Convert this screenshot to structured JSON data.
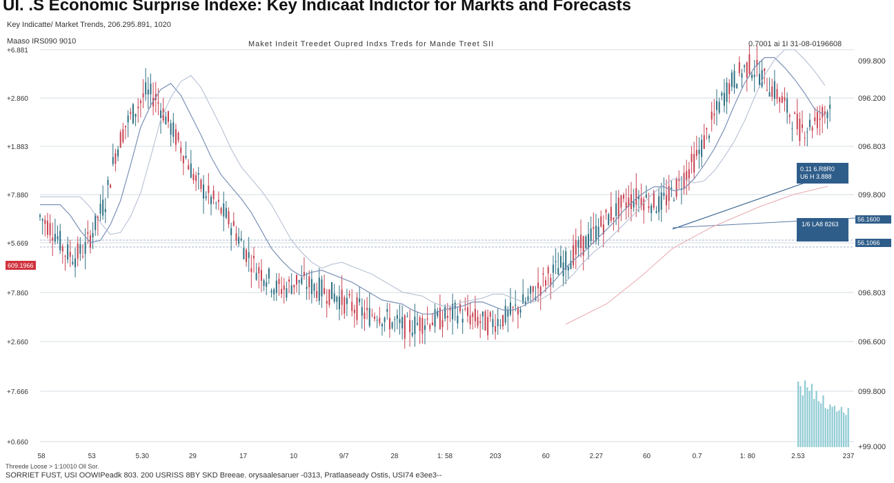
{
  "title": "UI. .S Economic Surprise Indexe: Key Indicaat Indictor for Markts and Forecasts",
  "subtitle": "Key Indicatte/  Market  Trends,  206.295.891,  1020",
  "top_left_label": "Maaso IRS090 9010",
  "header_center": "Maket  Indeit  Treedet  Oupred  Indxs  Treds  for  Mande  Treet  SII",
  "header_right": "0.7001 ai 1I 31-08-0196608",
  "footer_line1": "Threede Loose > 1:10010 Oll Sor.",
  "footer_line2": "SORRIET FUST, USI OOWIPeadk 803. 200 USRISS 8BY SKD Breeae.  orysaalesaruer -0313, Pratlaaseady Ostis, USI74 e3ee3--",
  "colors": {
    "bull": "#2b6f82",
    "bear": "#c84150",
    "grid": "#d5dce3",
    "ma_line": "#7a8fb5",
    "annotation_box": "#2f5d8a",
    "red_tag": "#d0323e",
    "volume": "#8ecad3"
  },
  "left_axis_labels": [
    "+6.881",
    "+2.860",
    "+1.883",
    "+7.880",
    "+5.669",
    "+7.860",
    "+2.660",
    "+7.666",
    "+0.660"
  ],
  "right_axis_labels": [
    "099.800",
    "096.200",
    "096.803",
    "099.800",
    "096.803",
    "096.600",
    "099.800",
    "+99.000"
  ],
  "x_axis_labels": [
    "58",
    "53",
    "5.30",
    "29",
    "17",
    "10",
    "9/7",
    "28",
    "1: 58",
    "203",
    "60",
    "2.27",
    "60",
    "0.7",
    "1: 80",
    "2.53",
    "237"
  ],
  "left_tag": "609.1966",
  "right_tags": [
    "56.1600",
    "56.1066"
  ],
  "annotations": [
    {
      "line1": "0.11 6.R8R0",
      "line2": "U6 H 3.888"
    },
    {
      "line1": "1/6 LA8 8263",
      "line2": ""
    }
  ],
  "chart_data": {
    "type": "candlestick",
    "title": "UI. .S Economic Surprise Indexe: Key Indicaat Indictor for Markts and Forecasts",
    "ylim": [
      0,
      100
    ],
    "close_path": [
      [
        0,
        58
      ],
      [
        3,
        54
      ],
      [
        5,
        49
      ],
      [
        7,
        48
      ],
      [
        9,
        50
      ],
      [
        11,
        56
      ],
      [
        13,
        62
      ],
      [
        15,
        74
      ],
      [
        17,
        81
      ],
      [
        19,
        85
      ],
      [
        21,
        89
      ],
      [
        23,
        88
      ],
      [
        25,
        83
      ],
      [
        27,
        78
      ],
      [
        29,
        73
      ],
      [
        31,
        67
      ],
      [
        33,
        64
      ],
      [
        35,
        61
      ],
      [
        37,
        58
      ],
      [
        39,
        54
      ],
      [
        41,
        49
      ],
      [
        43,
        45
      ],
      [
        45,
        43
      ],
      [
        47,
        40
      ],
      [
        49,
        40
      ],
      [
        51,
        42
      ],
      [
        53,
        41
      ],
      [
        55,
        40
      ],
      [
        57,
        39
      ],
      [
        59,
        38
      ],
      [
        61,
        36
      ],
      [
        63,
        35
      ],
      [
        65,
        33
      ],
      [
        67,
        34
      ],
      [
        69,
        32
      ],
      [
        71,
        31
      ],
      [
        73,
        30
      ],
      [
        75,
        31
      ],
      [
        77,
        32
      ],
      [
        79,
        32
      ],
      [
        81,
        33
      ],
      [
        83,
        34
      ],
      [
        85,
        33
      ],
      [
        87,
        32
      ],
      [
        89,
        31
      ],
      [
        91,
        32
      ],
      [
        93,
        33
      ],
      [
        95,
        35
      ],
      [
        97,
        37
      ],
      [
        99,
        40
      ],
      [
        101,
        43
      ],
      [
        103,
        45
      ],
      [
        105,
        47
      ],
      [
        107,
        50
      ],
      [
        109,
        52
      ],
      [
        111,
        55
      ],
      [
        113,
        58
      ],
      [
        115,
        60
      ],
      [
        117,
        62
      ],
      [
        119,
        63
      ],
      [
        121,
        62
      ],
      [
        123,
        61
      ],
      [
        125,
        63
      ],
      [
        127,
        66
      ],
      [
        129,
        70
      ],
      [
        131,
        74
      ],
      [
        133,
        80
      ],
      [
        135,
        86
      ],
      [
        137,
        91
      ],
      [
        139,
        94
      ],
      [
        141,
        96
      ],
      [
        143,
        94
      ],
      [
        145,
        91
      ],
      [
        147,
        88
      ],
      [
        149,
        84
      ],
      [
        151,
        80
      ],
      [
        153,
        81
      ],
      [
        155,
        83
      ],
      [
        157,
        86
      ]
    ],
    "volume": [
      57,
      53,
      45,
      58,
      52,
      49,
      55,
      42,
      49,
      40,
      38,
      45,
      34,
      33,
      37,
      35,
      36,
      31,
      32,
      35,
      30,
      28,
      34
    ]
  }
}
